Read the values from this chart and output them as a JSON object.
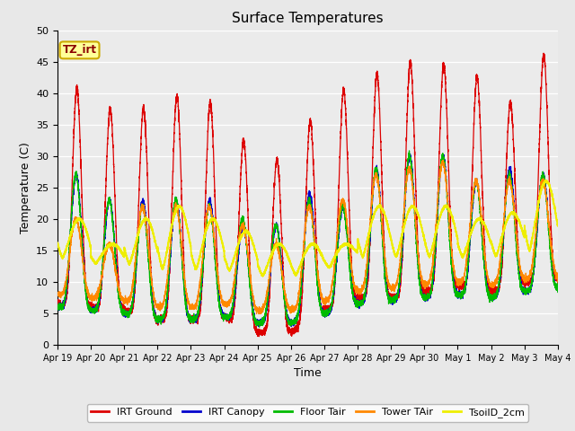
{
  "title": "Surface Temperatures",
  "xlabel": "Time",
  "ylabel": "Temperature (C)",
  "ylim": [
    0,
    50
  ],
  "xlim": [
    0,
    15
  ],
  "fig_bg": "#e8e8e8",
  "plot_bg": "#ebebeb",
  "annotation_text": "TZ_irt",
  "annotation_color": "#8b0000",
  "annotation_bg": "#ffff99",
  "annotation_border": "#ccaa00",
  "x_tick_labels": [
    "Apr 19",
    "Apr 20",
    "Apr 21",
    "Apr 22",
    "Apr 23",
    "Apr 24",
    "Apr 25",
    "Apr 26",
    "Apr 27",
    "Apr 28",
    "Apr 29",
    "Apr 30",
    "May 1",
    "May 2",
    "May 3",
    "May 4"
  ],
  "legend_entries": [
    {
      "label": "IRT Ground",
      "color": "#dd0000"
    },
    {
      "label": "IRT Canopy",
      "color": "#0000cc"
    },
    {
      "label": "Floor Tair",
      "color": "#00bb00"
    },
    {
      "label": "Tower TAir",
      "color": "#ff8800"
    },
    {
      "label": "TsoilD_2cm",
      "color": "#eeee00"
    }
  ],
  "irt_ground_peaks": [
    40.7,
    37.5,
    37.5,
    39.5,
    38.5,
    32.5,
    29.5,
    35.5,
    40.5,
    43.0,
    45.0,
    44.5,
    42.5,
    38.5,
    46.0
  ],
  "irt_ground_nights": [
    6.5,
    6.0,
    5.5,
    4.0,
    4.0,
    4.5,
    2.0,
    2.0,
    5.5,
    7.5,
    7.5,
    8.5,
    9.5,
    8.5,
    10.0,
    10.5
  ],
  "irt_canopy_peaks": [
    27,
    23,
    23,
    23,
    23,
    19,
    19,
    24,
    22,
    28,
    30,
    30,
    26,
    28,
    27
  ],
  "irt_canopy_nights": [
    6.0,
    5.5,
    5.0,
    4.0,
    4.0,
    4.5,
    3.5,
    3.5,
    5.0,
    6.5,
    7.0,
    7.5,
    8.0,
    7.5,
    8.5,
    9.0
  ],
  "floor_tair_peaks": [
    27,
    23,
    22,
    23,
    22,
    20,
    19,
    23,
    22,
    28,
    30,
    30,
    26,
    27,
    27
  ],
  "floor_tair_nights": [
    6.0,
    5.5,
    5.0,
    4.0,
    4.0,
    4.5,
    3.5,
    3.5,
    5.0,
    6.5,
    7.0,
    7.5,
    8.0,
    7.5,
    8.5,
    9.0
  ],
  "tower_tair_peaks": [
    20,
    16,
    22,
    22,
    22,
    19,
    16,
    22,
    23,
    27,
    28,
    29,
    26,
    26,
    26
  ],
  "tower_tair_nights": [
    8.0,
    7.5,
    7.0,
    6.0,
    6.0,
    6.5,
    5.5,
    5.5,
    7.0,
    8.5,
    9.0,
    9.5,
    10.0,
    9.5,
    10.5,
    11.0
  ],
  "tsoil_peaks": [
    20,
    16,
    20,
    22,
    20,
    18,
    16,
    16,
    16,
    22,
    22,
    22,
    20,
    21,
    26
  ],
  "tsoil_nights": [
    14,
    13,
    13,
    12,
    12,
    12,
    11,
    11,
    12,
    14,
    14,
    14,
    14,
    14,
    15,
    15
  ],
  "num_days": 15,
  "ppd": 480
}
